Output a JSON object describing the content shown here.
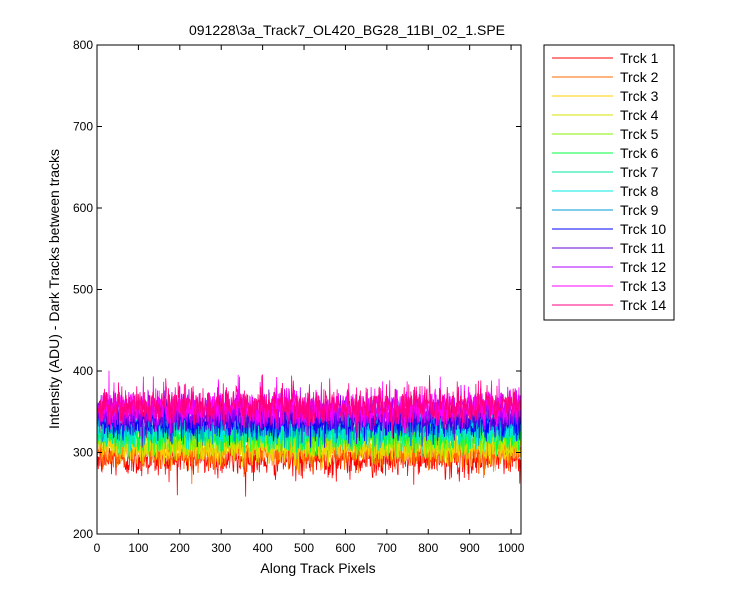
{
  "chart_data": {
    "type": "line",
    "title": "091228\\3a_Track7_OL420_BG28_11BI_02_1.SPE",
    "xlabel": "Along Track Pixels",
    "ylabel": "Intensity (ADU) - Dark Tracks between tracks",
    "xlim": [
      0,
      1024
    ],
    "ylim": [
      200,
      800
    ],
    "xticks": [
      0,
      100,
      200,
      300,
      400,
      500,
      600,
      700,
      800,
      900,
      1000
    ],
    "yticks": [
      200,
      300,
      400,
      500,
      600,
      700,
      800
    ],
    "grid": false,
    "legend_position": "outside-top-right",
    "x_count": 1024,
    "series": [
      {
        "name": "Trck 1",
        "color": "#ff0000",
        "mean": 292,
        "noise": 11
      },
      {
        "name": "Trck 2",
        "color": "#ff6a00",
        "mean": 300,
        "noise": 10
      },
      {
        "name": "Trck 3",
        "color": "#ffd000",
        "mean": 307,
        "noise": 10
      },
      {
        "name": "Trck 4",
        "color": "#d8e000",
        "mean": 312,
        "noise": 10
      },
      {
        "name": "Trck 5",
        "color": "#80f000",
        "mean": 318,
        "noise": 10
      },
      {
        "name": "Trck 6",
        "color": "#00ff40",
        "mean": 322,
        "noise": 10
      },
      {
        "name": "Trck 7",
        "color": "#00e8a0",
        "mean": 327,
        "noise": 10
      },
      {
        "name": "Trck 8",
        "color": "#00e8e0",
        "mean": 330,
        "noise": 10
      },
      {
        "name": "Trck 9",
        "color": "#0098d8",
        "mean": 335,
        "noise": 10
      },
      {
        "name": "Trck 10",
        "color": "#0000ff",
        "mean": 338,
        "noise": 10
      },
      {
        "name": "Trck 11",
        "color": "#6000d0",
        "mean": 345,
        "noise": 11
      },
      {
        "name": "Trck 12",
        "color": "#b000ff",
        "mean": 352,
        "noise": 11
      },
      {
        "name": "Trck 13",
        "color": "#ff00ff",
        "mean": 355,
        "noise": 12
      },
      {
        "name": "Trck 14",
        "color": "#ff0080",
        "mean": 357,
        "noise": 12
      }
    ]
  }
}
